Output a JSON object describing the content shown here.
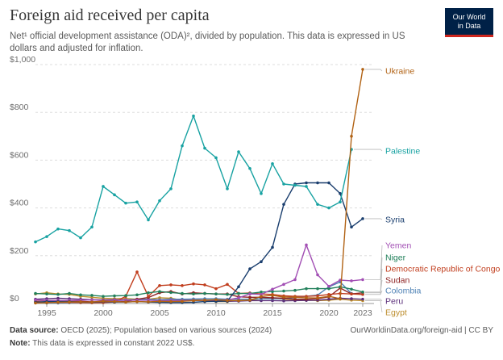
{
  "title": "Foreign aid received per capita",
  "subtitle": "Net¹ official development assistance (ODA)², divided by population. This data is expressed in US dollars and adjusted for inflation.",
  "logo": {
    "line1": "Our World",
    "line2": "in Data"
  },
  "footer": {
    "source_label": "Data source:",
    "source_text": "OECD (2025); Population based on various sources (2024)",
    "url": "OurWorldinData.org/foreign-aid | CC BY",
    "note_label": "Note:",
    "note_text": "This data is expressed in constant 2022 US$."
  },
  "chart_data": {
    "type": "line",
    "title": "Foreign aid received per capita",
    "xlim": [
      1994,
      2024
    ],
    "ylim": [
      0,
      1000
    ],
    "x_ticks": [
      1995,
      2000,
      2005,
      2010,
      2015,
      2020,
      2023
    ],
    "y_ticks": [
      0,
      200,
      400,
      600,
      800,
      1000
    ],
    "y_tick_labels": [
      "$0",
      "$200",
      "$400",
      "$600",
      "$800",
      "$1,000"
    ],
    "grid": "horizontal dashed",
    "legend": "right (end labels)",
    "x": [
      1994,
      1995,
      1996,
      1997,
      1998,
      1999,
      2000,
      2001,
      2002,
      2003,
      2004,
      2005,
      2006,
      2007,
      2008,
      2009,
      2010,
      2011,
      2012,
      2013,
      2014,
      2015,
      2016,
      2017,
      2018,
      2019,
      2020,
      2021,
      2022,
      2023
    ],
    "series": [
      {
        "name": "Ukraine",
        "color": "#b16214",
        "values": [
          2,
          3,
          5,
          6,
          7,
          6,
          10,
          8,
          6,
          8,
          7,
          9,
          8,
          9,
          12,
          14,
          16,
          13,
          12,
          14,
          30,
          34,
          27,
          26,
          24,
          23,
          30,
          20,
          700,
          980
        ]
      },
      {
        "name": "Palestine",
        "color": "#18a2a2",
        "values": [
          258,
          280,
          312,
          305,
          275,
          320,
          490,
          455,
          420,
          425,
          350,
          430,
          480,
          660,
          785,
          650,
          610,
          480,
          635,
          565,
          460,
          585,
          500,
          495,
          490,
          415,
          400,
          425,
          645,
          null
        ]
      },
      {
        "name": "Syria",
        "color": "#1a3e6e",
        "values": [
          5,
          8,
          8,
          8,
          6,
          5,
          8,
          6,
          6,
          8,
          6,
          5,
          4,
          4,
          5,
          8,
          9,
          10,
          70,
          145,
          175,
          235,
          415,
          500,
          505,
          505,
          505,
          460,
          320,
          355
        ]
      },
      {
        "name": "Yemen",
        "color": "#a24fb4",
        "values": [
          15,
          13,
          12,
          13,
          14,
          15,
          13,
          14,
          14,
          14,
          14,
          12,
          13,
          12,
          13,
          14,
          15,
          15,
          24,
          40,
          38,
          60,
          80,
          100,
          245,
          120,
          72,
          98,
          95,
          100
        ]
      },
      {
        "name": "Niger",
        "color": "#22805b",
        "values": [
          42,
          40,
          38,
          42,
          36,
          34,
          30,
          32,
          33,
          36,
          45,
          50,
          46,
          42,
          40,
          42,
          40,
          38,
          42,
          42,
          48,
          50,
          52,
          55,
          62,
          62,
          62,
          70,
          60,
          48
        ]
      },
      {
        "name": "Democratic Republic of Congo",
        "color": "#c13e1e",
        "values": [
          8,
          6,
          5,
          5,
          4,
          3,
          4,
          6,
          30,
          132,
          30,
          75,
          78,
          75,
          82,
          78,
          62,
          80,
          42,
          44,
          40,
          38,
          32,
          30,
          30,
          32,
          38,
          42,
          40,
          38
        ]
      },
      {
        "name": "Sudan",
        "color": "#8f2424",
        "values": [
          14,
          12,
          12,
          10,
          9,
          7,
          7,
          7,
          8,
          18,
          25,
          45,
          50,
          40,
          45,
          42,
          40,
          40,
          28,
          26,
          26,
          24,
          22,
          18,
          18,
          20,
          28,
          65,
          40,
          45
        ]
      },
      {
        "name": "Colombia",
        "color": "#4f82b5",
        "values": [
          3,
          2,
          2,
          3,
          4,
          6,
          8,
          12,
          14,
          18,
          17,
          16,
          18,
          18,
          19,
          20,
          20,
          18,
          18,
          18,
          20,
          20,
          20,
          25,
          30,
          35,
          70,
          90,
          42,
          38
        ]
      },
      {
        "name": "Peru",
        "color": "#5b2f7a",
        "values": [
          18,
          20,
          22,
          20,
          18,
          16,
          15,
          16,
          15,
          16,
          16,
          15,
          14,
          14,
          13,
          14,
          12,
          10,
          10,
          12,
          12,
          12,
          11,
          12,
          13,
          14,
          18,
          22,
          20,
          18
        ]
      },
      {
        "name": "Egypt",
        "color": "#bd8e2e",
        "values": [
          40,
          45,
          40,
          38,
          30,
          26,
          22,
          20,
          21,
          18,
          18,
          24,
          22,
          14,
          18,
          12,
          8,
          8,
          12,
          14,
          20,
          24,
          18,
          16,
          14,
          12,
          14,
          18,
          14,
          12
        ]
      }
    ]
  }
}
